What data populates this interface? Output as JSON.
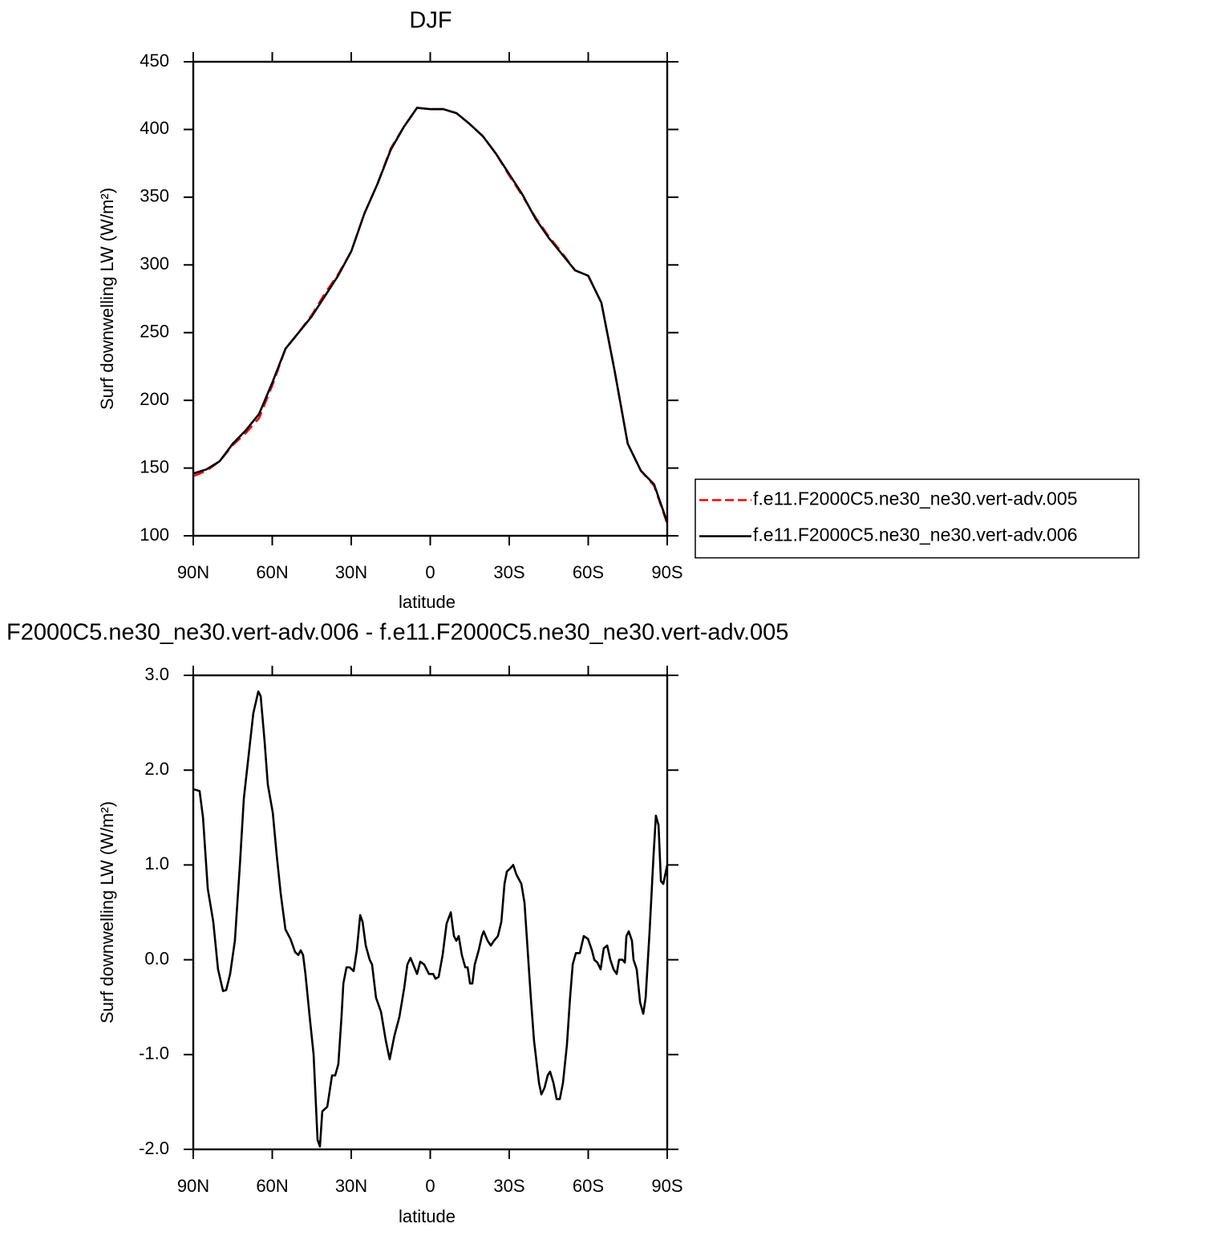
{
  "chart_data": [
    {
      "type": "line",
      "title": "DJF",
      "xlabel": "latitude",
      "ylabel": "Surf downwelling LW (W/m²)",
      "xlim": [
        90,
        -90
      ],
      "xticks": [
        {
          "value": 90,
          "label": "90N"
        },
        {
          "value": 60,
          "label": "60N"
        },
        {
          "value": 30,
          "label": "30N"
        },
        0,
        {
          "value": -30,
          "label": "30S"
        },
        {
          "value": -60,
          "label": "60S"
        },
        {
          "value": -90,
          "label": "90S"
        }
      ],
      "ylim": [
        100,
        450
      ],
      "yticks": [
        100,
        150,
        200,
        250,
        300,
        350,
        400,
        450
      ],
      "legend": "right",
      "x": [
        90,
        85,
        80,
        75,
        70,
        65,
        60,
        55,
        50,
        45,
        40,
        35,
        30,
        25,
        20,
        15,
        10,
        5,
        0,
        -5,
        -10,
        -15,
        -20,
        -25,
        -30,
        -35,
        -40,
        -45,
        -50,
        -55,
        -60,
        -65,
        -70,
        -75,
        -80,
        -85,
        -90
      ],
      "series": [
        {
          "name": "f.e11.F2000C5.ne30_ne30.vert-adv.005",
          "color": "#ff0000",
          "linestyle": "dashed",
          "values": [
            144,
            148,
            155,
            167,
            176,
            187,
            211,
            238,
            250,
            263,
            279,
            293,
            310,
            338,
            360,
            386,
            402,
            416,
            415,
            415,
            412,
            404,
            395,
            382,
            366,
            351,
            335,
            321,
            309,
            296,
            292,
            272,
            222,
            168,
            148,
            137,
            109
          ]
        },
        {
          "name": "f.e11.F2000C5.ne30_ne30.vert-adv.006",
          "color": "#000000",
          "linestyle": "solid",
          "values": [
            146,
            149,
            155,
            168,
            178,
            190,
            213,
            238,
            250,
            262,
            277,
            292,
            310,
            338,
            360,
            385,
            402,
            416,
            415,
            415,
            412,
            404,
            395,
            382,
            367,
            352,
            334,
            320,
            308,
            296,
            292,
            272,
            222,
            168,
            148,
            138,
            110
          ]
        }
      ]
    },
    {
      "type": "line",
      "title": "F2000C5.ne30_ne30.vert-adv.006 - f.e11.F2000C5.ne30_ne30.vert-adv.005",
      "xlabel": "latitude",
      "ylabel": "Surf downwelling LW (W/m²)",
      "xlim": [
        90,
        -90
      ],
      "xticks": [
        {
          "value": 90,
          "label": "90N"
        },
        {
          "value": 60,
          "label": "60N"
        },
        {
          "value": 30,
          "label": "30N"
        },
        0,
        {
          "value": -30,
          "label": "30S"
        },
        {
          "value": -60,
          "label": "60S"
        },
        {
          "value": -90,
          "label": "90S"
        }
      ],
      "ylim": [
        -2,
        3
      ],
      "yticks": [
        {
          "value": -2,
          "label": "-2.0"
        },
        {
          "value": -1,
          "label": "-1.0"
        },
        {
          "value": 0,
          "label": "0.0"
        },
        {
          "value": 1,
          "label": "1.0"
        },
        {
          "value": 2,
          "label": "2.0"
        },
        {
          "value": 3,
          "label": "3.0"
        }
      ],
      "x": [
        90,
        87.6,
        86.3,
        84.5,
        82.4,
        80.6,
        78.7,
        77.5,
        76.0,
        74.2,
        72.3,
        70.8,
        69.6,
        67.2,
        65.3,
        64.4,
        62.9,
        61.7,
        59.8,
        58.3,
        56.8,
        55.0,
        53.1,
        51.3,
        50.1,
        49.2,
        48.3,
        47.4,
        45.8,
        44.3,
        42.8,
        41.9,
        41.0,
        39.1,
        37.3,
        36.1,
        34.9,
        33.7,
        33.0,
        31.8,
        30.6,
        29.1,
        27.9,
        26.6,
        25.7,
        24.5,
        23.0,
        22.1,
        20.6,
        18.7,
        16.9,
        15.4,
        13.6,
        11.7,
        9.9,
        8.7,
        7.5,
        5.0,
        3.8,
        2.3,
        0.5,
        -1.1,
        -2.0,
        -3.2,
        -4.7,
        -6.2,
        -7.8,
        -9.0,
        -9.9,
        -10.8,
        -12.0,
        -13.3,
        -14.2,
        -15.1,
        -16.0,
        -16.9,
        -18.4,
        -19.6,
        -20.3,
        -21.8,
        -23.0,
        -24.2,
        -25.7,
        -27.0,
        -28.2,
        -29.1,
        -30.6,
        -31.5,
        -32.7,
        -34.6,
        -35.8,
        -37.0,
        -38.2,
        -39.4,
        -41.3,
        -42.2,
        -43.4,
        -44.6,
        -45.5,
        -46.8,
        -48.0,
        -49.2,
        -50.4,
        -51.9,
        -53.1,
        -54.1,
        -55.3,
        -56.8,
        -58.3,
        -59.9,
        -61.4,
        -62.3,
        -63.5,
        -64.7,
        -65.9,
        -67.2,
        -68.4,
        -69.6,
        -70.8,
        -71.7,
        -73.0,
        -73.9,
        -74.5,
        -75.4,
        -76.6,
        -77.2,
        -78.4,
        -79.7,
        -80.9,
        -81.8,
        -83.3,
        -84.8,
        -85.7,
        -86.7,
        -87.6,
        -88.5,
        -90
      ],
      "series": [
        {
          "color": "#000000",
          "linestyle": "solid",
          "values": [
            1.8,
            1.78,
            1.5,
            0.75,
            0.4,
            -0.1,
            -0.33,
            -0.32,
            -0.15,
            0.2,
            1.0,
            1.7,
            2.0,
            2.6,
            2.83,
            2.78,
            2.3,
            1.85,
            1.55,
            1.1,
            0.7,
            0.32,
            0.22,
            0.08,
            0.05,
            0.1,
            0.05,
            -0.15,
            -0.6,
            -1.0,
            -1.9,
            -1.97,
            -1.6,
            -1.55,
            -1.22,
            -1.22,
            -1.1,
            -0.6,
            -0.25,
            -0.08,
            -0.08,
            -0.12,
            0.1,
            0.47,
            0.4,
            0.15,
            0.0,
            -0.05,
            -0.4,
            -0.55,
            -0.85,
            -1.05,
            -0.8,
            -0.6,
            -0.3,
            -0.05,
            0.02,
            -0.15,
            -0.02,
            -0.05,
            -0.15,
            -0.15,
            -0.2,
            -0.18,
            0.05,
            0.38,
            0.5,
            0.25,
            0.2,
            0.25,
            0.05,
            -0.08,
            -0.08,
            -0.25,
            -0.25,
            -0.05,
            0.1,
            0.25,
            0.3,
            0.2,
            0.15,
            0.2,
            0.25,
            0.4,
            0.8,
            0.93,
            0.97,
            1.0,
            0.9,
            0.8,
            0.6,
            0.1,
            -0.4,
            -0.85,
            -1.3,
            -1.42,
            -1.35,
            -1.22,
            -1.18,
            -1.3,
            -1.47,
            -1.47,
            -1.3,
            -0.9,
            -0.4,
            -0.05,
            0.07,
            0.07,
            0.25,
            0.22,
            0.1,
            0.0,
            -0.03,
            -0.1,
            0.12,
            0.15,
            0.0,
            -0.1,
            -0.15,
            0.0,
            0.0,
            -0.03,
            0.25,
            0.3,
            0.2,
            0.0,
            -0.1,
            -0.45,
            -0.57,
            -0.4,
            0.3,
            1.1,
            1.52,
            1.42,
            0.83,
            0.8,
            1.0
          ]
        }
      ]
    }
  ]
}
